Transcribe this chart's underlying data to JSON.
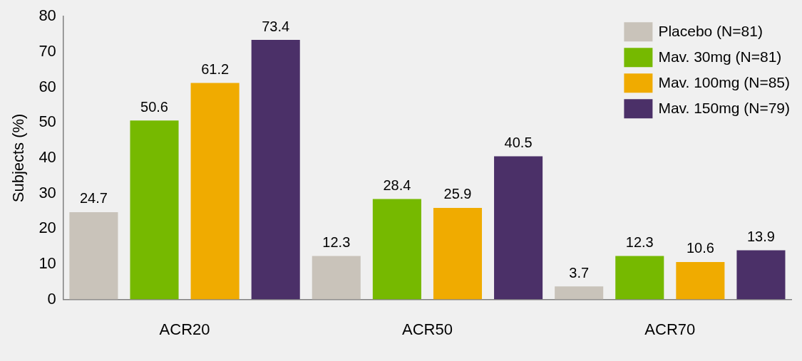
{
  "chart_data": {
    "type": "bar",
    "ylabel": "Subjects (%)",
    "categories": [
      "ACR20",
      "ACR50",
      "ACR70"
    ],
    "series": [
      {
        "name": "Placebo (N=81)",
        "color": "#c9c3ba",
        "values": [
          24.7,
          12.3,
          3.7
        ]
      },
      {
        "name": "Mav. 30mg (N=81)",
        "color": "#76b900",
        "values": [
          50.6,
          28.4,
          12.3
        ]
      },
      {
        "name": "Mav. 100mg (N=85)",
        "color": "#f0ab00",
        "values": [
          61.2,
          25.9,
          10.6
        ]
      },
      {
        "name": "Mav. 150mg (N=79)",
        "color": "#4b3068",
        "values": [
          73.4,
          40.5,
          13.9
        ]
      }
    ],
    "ylim": [
      0,
      80
    ],
    "yticks": [
      0,
      10,
      20,
      30,
      40,
      50,
      60,
      70,
      80
    ],
    "grid": false,
    "legend": "top right",
    "data_labels": true
  }
}
